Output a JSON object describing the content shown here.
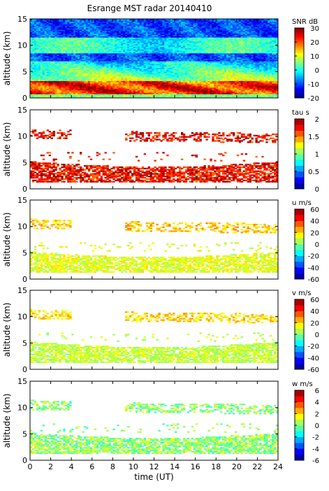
{
  "figure": {
    "title": "Esrange MST radar 20140410"
  },
  "colors": {
    "jet": [
      "#00007f",
      "#0000ff",
      "#007fff",
      "#00ffff",
      "#7fff7f",
      "#ffff00",
      "#ff7f00",
      "#ff0000",
      "#7f0000"
    ]
  },
  "chart_data": [
    {
      "type": "heatmap",
      "quantity": "SNR",
      "cbar_label": "SNR dB",
      "ylabel": "altitude (km)",
      "ylim": [
        0,
        15
      ],
      "yticks": [
        0,
        5,
        10,
        15
      ],
      "xlim": [
        0,
        24
      ],
      "clim": [
        -20,
        30
      ],
      "cticks": [
        30,
        20,
        10,
        0,
        -10,
        -20
      ],
      "cbar_style": "continuous",
      "description_of_field": "high SNR (red) in 1-3 km band, medium 3-7 km, low (blue) above 8 km with cyan band near 9-11 km"
    },
    {
      "type": "heatmap",
      "quantity": "tau",
      "cbar_label": "tau s",
      "ylabel": "altitude (km)",
      "ylim": [
        0,
        15
      ],
      "yticks": [
        0,
        5,
        10,
        15
      ],
      "xlim": [
        0,
        24
      ],
      "clim": [
        0,
        2
      ],
      "cticks": [
        2,
        1.5,
        1,
        0.5,
        0
      ],
      "cbar_style": "discrete",
      "description_of_field": "mostly dark red (about 2 s) values in layer 1.5-5 km and scattered layer near 9-11 km"
    },
    {
      "type": "heatmap",
      "quantity": "u",
      "cbar_label": "u m/s",
      "ylabel": "altitude (km)",
      "ylim": [
        0,
        15
      ],
      "yticks": [
        0,
        5,
        10,
        15
      ],
      "xlim": [
        0,
        24
      ],
      "clim": [
        -60,
        60
      ],
      "cticks": [
        60,
        40,
        20,
        0,
        -20,
        -40,
        -60
      ],
      "cbar_style": "discrete",
      "description_of_field": "weak positive winds (light green/yellow) in 1-5 km layer and 9-11 km layer"
    },
    {
      "type": "heatmap",
      "quantity": "v",
      "cbar_label": "v m/s",
      "ylabel": "altitude (km)",
      "ylim": [
        0,
        15
      ],
      "yticks": [
        0,
        5,
        10,
        15
      ],
      "xlim": [
        0,
        24
      ],
      "clim": [
        -60,
        60
      ],
      "cticks": [
        60,
        40,
        20,
        0,
        -20,
        -40,
        -60
      ],
      "cbar_style": "discrete",
      "description_of_field": "weak positive winds (green/yellow) in 1-5 km layer and 9-11 km layer"
    },
    {
      "type": "heatmap",
      "quantity": "w",
      "cbar_label": "w m/s",
      "ylabel": "altitude (km)",
      "ylim": [
        0,
        15
      ],
      "yticks": [
        0,
        5,
        10,
        15
      ],
      "xlim": [
        0,
        24
      ],
      "xticks": [
        0,
        2,
        4,
        6,
        8,
        10,
        12,
        14,
        16,
        18,
        20,
        22,
        24
      ],
      "xlabel": "time (UT)",
      "clim": [
        -6,
        6
      ],
      "cticks": [
        6,
        4,
        2,
        0,
        -2,
        -4,
        -6
      ],
      "cbar_style": "discrete",
      "description_of_field": "near-zero vertical winds (green/cyan) in 1-5 km layer and 9-11 km layer"
    }
  ]
}
